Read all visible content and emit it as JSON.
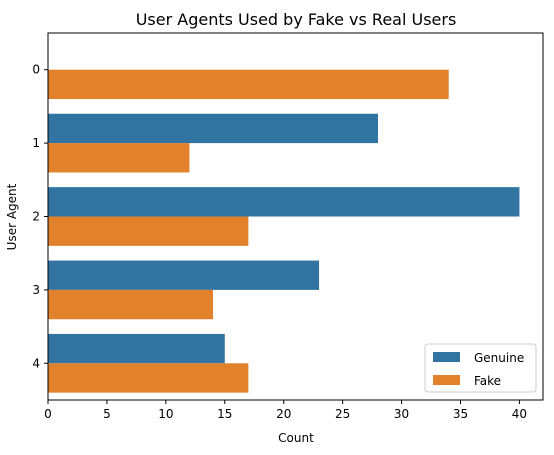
{
  "chart_data": {
    "type": "bar",
    "orientation": "horizontal",
    "title": "User Agents Used by Fake vs Real Users",
    "xlabel": "Count",
    "ylabel": "User Agent",
    "categories": [
      "0",
      "1",
      "2",
      "3",
      "4"
    ],
    "series": [
      {
        "name": "Genuine",
        "color": "#3274a1",
        "values": [
          0,
          28,
          40,
          23,
          15
        ]
      },
      {
        "name": "Fake",
        "color": "#e1812c",
        "values": [
          34,
          12,
          17,
          14,
          17
        ]
      }
    ],
    "xlim": [
      0,
      42
    ],
    "xticks": [
      0,
      5,
      10,
      15,
      20,
      25,
      30,
      35,
      40
    ],
    "grid": false,
    "legend_position": "lower-right"
  }
}
